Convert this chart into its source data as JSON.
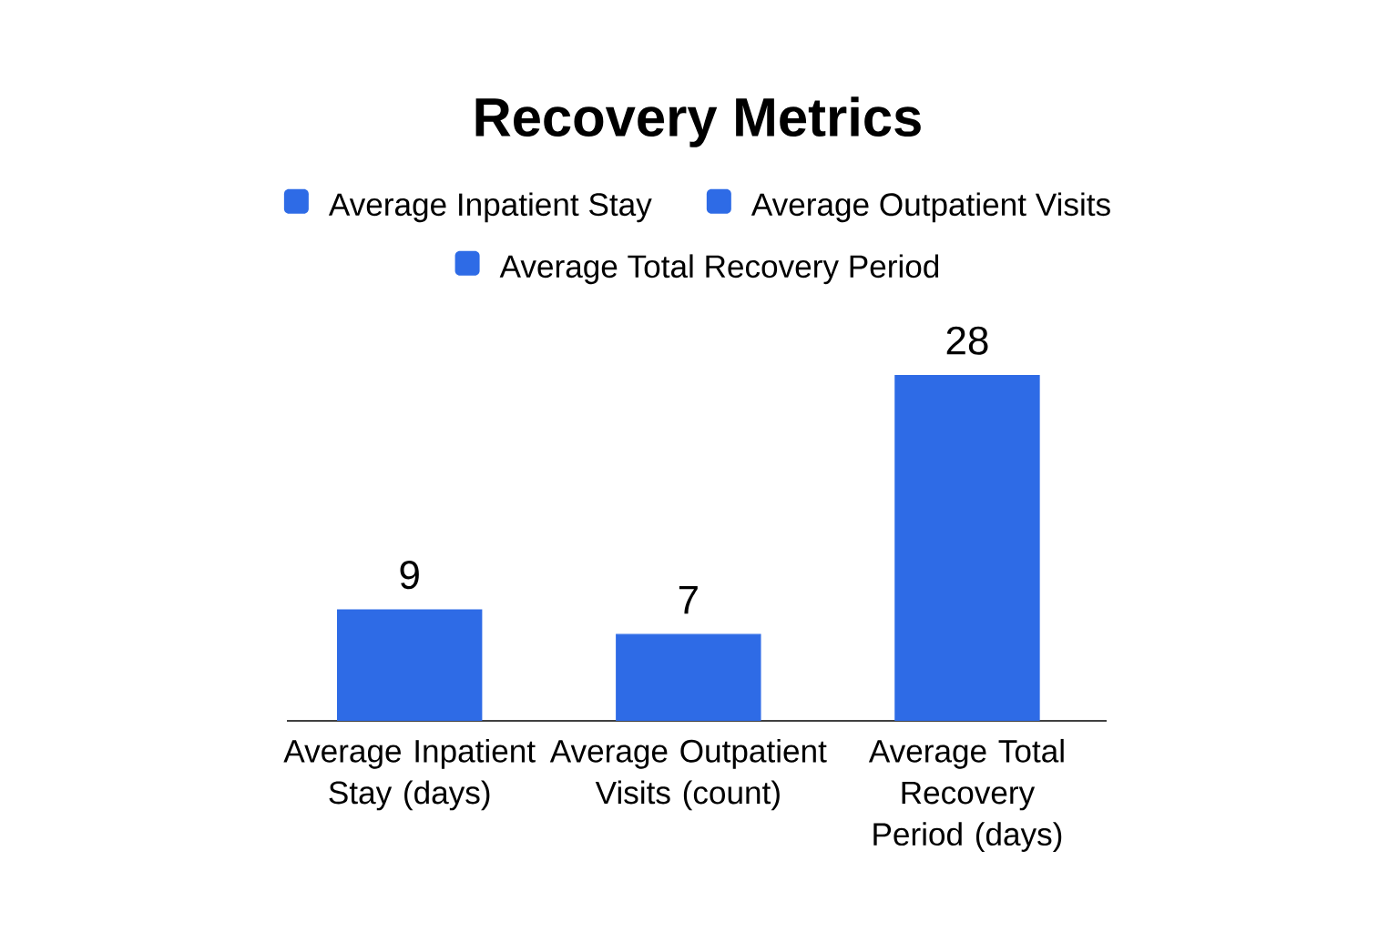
{
  "chart_data": {
    "type": "bar",
    "title": "Recovery Metrics",
    "categories": [
      "Average Inpatient Stay (days)",
      "Average Outpatient Visits (count)",
      "Average Total Recovery Period (days)"
    ],
    "series": [
      {
        "name": "Average Inpatient Stay",
        "color": "#2e6be6",
        "values": [
          9,
          null,
          null
        ]
      },
      {
        "name": "Average Outpatient Visits",
        "color": "#2e6be6",
        "values": [
          null,
          7,
          null
        ]
      },
      {
        "name": "Average Total Recovery Period",
        "color": "#2e6be6",
        "values": [
          null,
          null,
          28
        ]
      }
    ],
    "data_labels": true,
    "legend": "top"
  }
}
